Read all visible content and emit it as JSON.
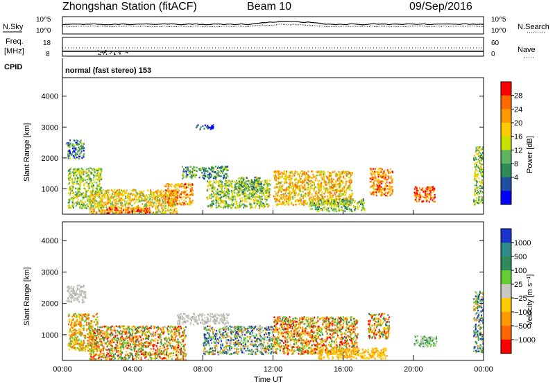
{
  "header": {
    "station_title": "Zhongshan Station (fitACF)",
    "beam_label": "Beam 10",
    "date": "09/Sep/2016"
  },
  "nsky_panel": {
    "left_label": "N.Sky",
    "right_label": "N.Search",
    "left_ticks": [
      "10^5",
      "10^0"
    ],
    "right_ticks": [
      "10^5",
      "10^0"
    ]
  },
  "freq_panel": {
    "left_label_line1": "Freq.",
    "left_label_line2": "[MHz]",
    "right_label": "Nave",
    "left_ticks": [
      "18",
      "8"
    ],
    "right_ticks": [
      "60",
      "0"
    ]
  },
  "cpid": {
    "label": "CPID",
    "value": "normal (fast stereo) 153"
  },
  "chart_data": [
    {
      "type": "heatmap",
      "name": "Power",
      "ylabel": "Slant Range [km]",
      "y_ticks": [
        "4000",
        "3000",
        "2000",
        "1000"
      ],
      "y_tick_values": [
        4000,
        3000,
        2000,
        1000
      ],
      "ylim": [
        180,
        4600
      ],
      "xlim_hours": [
        0,
        24
      ],
      "colorbar_label": "Power [dB]",
      "colorbar_ticks": [
        "28",
        "24",
        "20",
        "16",
        "12",
        "8",
        "4"
      ],
      "colorbar_colors": [
        "#ff0000",
        "#ff6a00",
        "#ff9900",
        "#ffcc00",
        "#c8e000",
        "#5fb55f",
        "#2e8b57",
        "#1f4fa0",
        "#0000ff"
      ],
      "regions": [
        {
          "t0": 0.2,
          "t1": 1.2,
          "r0": 2000,
          "r1": 2600,
          "level": 0.25
        },
        {
          "t0": 0.3,
          "t1": 2.2,
          "r0": 400,
          "r1": 1700,
          "level": 0.45
        },
        {
          "t0": 1.5,
          "t1": 6.5,
          "r0": 220,
          "r1": 1000,
          "level": 0.6
        },
        {
          "t0": 2.5,
          "t1": 5.0,
          "r0": 240,
          "r1": 420,
          "level": 0.95
        },
        {
          "t0": 5.8,
          "t1": 7.4,
          "r0": 500,
          "r1": 1200,
          "level": 0.75
        },
        {
          "t0": 6.8,
          "t1": 9.4,
          "r0": 1350,
          "r1": 1750,
          "level": 0.3
        },
        {
          "t0": 7.6,
          "t1": 8.6,
          "r0": 2950,
          "r1": 3100,
          "level": 0.1
        },
        {
          "t0": 8.2,
          "t1": 11.8,
          "r0": 400,
          "r1": 1300,
          "level": 0.45
        },
        {
          "t0": 10.0,
          "t1": 11.5,
          "r0": 900,
          "r1": 1400,
          "level": 0.35
        },
        {
          "t0": 12.0,
          "t1": 16.5,
          "r0": 500,
          "r1": 1600,
          "level": 0.65
        },
        {
          "t0": 14.0,
          "t1": 17.2,
          "r0": 300,
          "r1": 700,
          "level": 0.4
        },
        {
          "t0": 17.5,
          "t1": 18.8,
          "r0": 800,
          "r1": 1700,
          "level": 0.8
        },
        {
          "t0": 20.0,
          "t1": 21.2,
          "r0": 600,
          "r1": 1100,
          "level": 0.9
        },
        {
          "t0": 23.4,
          "t1": 24.0,
          "r0": 500,
          "r1": 2400,
          "level": 0.45
        }
      ]
    },
    {
      "type": "heatmap",
      "name": "Velocity",
      "ylabel": "Slant Range [km]",
      "y_ticks": [
        "4000",
        "3000",
        "2000",
        "1000"
      ],
      "y_tick_values": [
        4000,
        3000,
        2000,
        1000
      ],
      "ylim": [
        180,
        4600
      ],
      "xlim_hours": [
        0,
        24
      ],
      "x_ticks": [
        "00:00",
        "04:00",
        "08:00",
        "12:00",
        "16:00",
        "20:00",
        "00:00"
      ],
      "x_tick_hours": [
        0,
        4,
        8,
        12,
        16,
        20,
        24
      ],
      "xlabel": "Time UT",
      "colorbar_label": "Velocity [m s⁻¹]",
      "colorbar_ticks": [
        "1000",
        "500",
        "100",
        "25",
        "−25",
        "−100",
        "−500",
        "−1000"
      ],
      "colorbar_colors": [
        "#1a33cc",
        "#2e8b8b",
        "#2e8b57",
        "#66cc33",
        "#c8c8c0",
        "#ffcc00",
        "#ff9900",
        "#ff6600",
        "#ff0000"
      ],
      "regions": [
        {
          "t0": 0.2,
          "t1": 1.3,
          "r0": 2050,
          "r1": 2600,
          "kind": "gray"
        },
        {
          "t0": 0.3,
          "t1": 2.0,
          "r0": 500,
          "r1": 1700,
          "kind": "mix_warm"
        },
        {
          "t0": 1.5,
          "t1": 7.0,
          "r0": 220,
          "r1": 1300,
          "kind": "warm"
        },
        {
          "t0": 6.5,
          "t1": 9.5,
          "r0": 1350,
          "r1": 1700,
          "kind": "gray"
        },
        {
          "t0": 8.0,
          "t1": 12.0,
          "r0": 400,
          "r1": 1300,
          "kind": "mix_cool"
        },
        {
          "t0": 12.0,
          "t1": 16.8,
          "r0": 400,
          "r1": 1600,
          "kind": "warm"
        },
        {
          "t0": 14.5,
          "t1": 18.5,
          "r0": 250,
          "r1": 600,
          "kind": "yellow"
        },
        {
          "t0": 17.4,
          "t1": 18.6,
          "r0": 900,
          "r1": 1700,
          "kind": "warm"
        },
        {
          "t0": 20.0,
          "t1": 21.3,
          "r0": 650,
          "r1": 1000,
          "kind": "green"
        },
        {
          "t0": 23.4,
          "t1": 24.0,
          "r0": 450,
          "r1": 2400,
          "kind": "mix_cool"
        }
      ]
    }
  ]
}
